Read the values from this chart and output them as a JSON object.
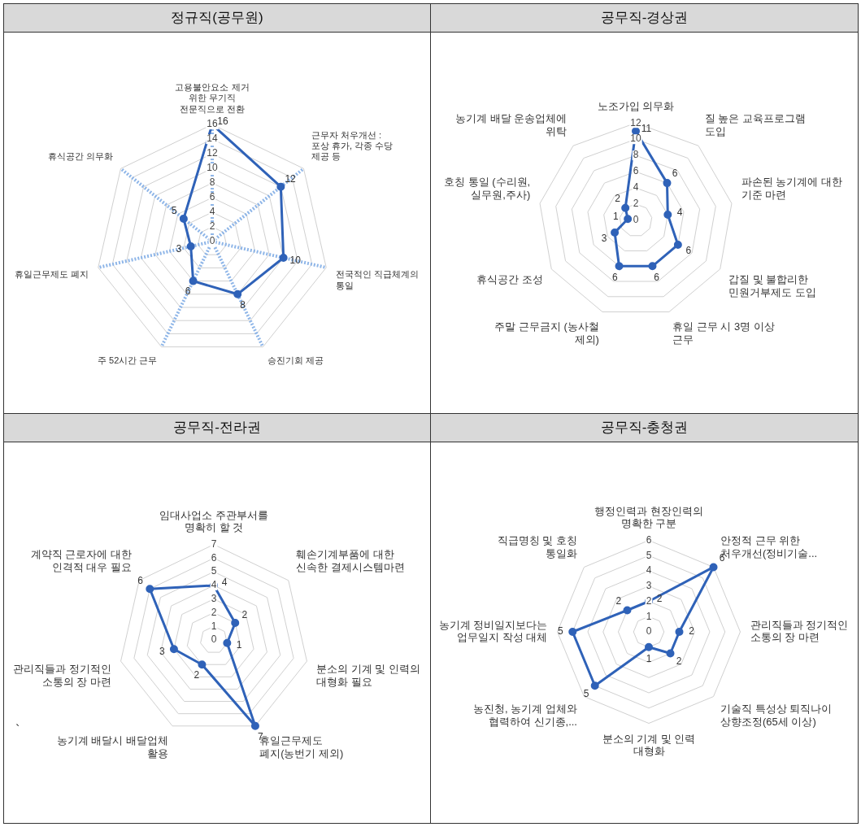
{
  "chart_data": [
    {
      "type": "radar",
      "title": "정규직(공무원)",
      "categories": [
        "고용불안요소 제거 위한 무기직 전문직으로 전환",
        "근무자 처우개선 : 포상 휴가, 각종 수당 제공 등",
        "전국적인 직급체계의 통일",
        "승진기회 제공",
        "주 52시간 근무",
        "휴일근무제도 폐지",
        "휴식공간 의무화"
      ],
      "series": [
        {
          "color": "#2f62b8",
          "values": [
            16,
            12,
            10,
            8,
            6,
            3,
            5
          ]
        }
      ],
      "ylim": [
        0,
        16
      ],
      "yticks": [
        0,
        2,
        4,
        6,
        8,
        10,
        12,
        14,
        16
      ],
      "grid": true,
      "data_labels": true,
      "marker": "circle"
    },
    {
      "type": "radar",
      "title": "공무직-경상권",
      "categories": [
        "노조가입 의무화",
        "질 높은 교육프로그램 도입",
        "파손된 농기계에 대한 기준 마련",
        "갑질 및 불합리한 민원거부제도 도입",
        "휴일 근무 시 3명 이상 근무",
        "주말 근무금지 (농사철 제외)",
        "휴식공간 조성",
        "호칭 통일 (수리원, 실무원,주사)",
        "농기계 배달 운송업체에 위탁"
      ],
      "series": [
        {
          "color": "#2f62b8",
          "values": [
            11,
            6,
            4,
            6,
            6,
            6,
            3,
            1,
            2
          ]
        }
      ],
      "ylim": [
        0,
        12
      ],
      "yticks": [
        0,
        2,
        4,
        6,
        8,
        10,
        12
      ],
      "grid": "y",
      "data_labels": true,
      "marker": "circle"
    },
    {
      "type": "radar",
      "title": "공무직-전라권",
      "categories": [
        "임대사업소 주관부서를 명확히 할 것",
        "훼손기계부품에 대한 신속한 결제시스템마련",
        "분소의 기계 및 인력의 대형화 필요",
        "휴일근무제도 폐지(농번기 제외)",
        "농기계 배달시 배달업체 활용",
        "관리직들과 정기적인 소통의 장 마련",
        "계약직 근로자에 대한 인격적 대우 필요"
      ],
      "series": [
        {
          "color": "#2f62b8",
          "values": [
            4,
            2,
            1,
            7,
            2,
            3,
            6
          ]
        }
      ],
      "ylim": [
        0,
        7
      ],
      "yticks": [
        0,
        1,
        2,
        3,
        4,
        5,
        6,
        7
      ],
      "grid": "y",
      "data_labels": true,
      "marker": "circle",
      "annotations": [
        "`"
      ]
    },
    {
      "type": "radar",
      "title": "공무직-충청권",
      "categories": [
        "행정인력과 현장인력의 명확한 구분",
        "안정적 근무 위한 처우개선(정비기술...",
        "관리직들과 정기적인 소통의 장 마련",
        "기술직 특성상 퇴직나이 상향조정(65세 이상)",
        "분소의 기계 및 인력 대형화",
        "농진청, 농기계 업체와 협력하여 신기종,...",
        "농기계 정비일지보다는 업무일지 작성 대체",
        "직급명칭 및 호칭 통일화"
      ],
      "series": [
        {
          "color": "#2f62b8",
          "values": [
            2,
            6,
            2,
            2,
            1,
            5,
            5,
            2
          ]
        }
      ],
      "ylim": [
        0,
        6
      ],
      "yticks": [
        0,
        1,
        2,
        3,
        4,
        5,
        6
      ],
      "grid": "y",
      "data_labels": true,
      "marker": "circle"
    }
  ]
}
